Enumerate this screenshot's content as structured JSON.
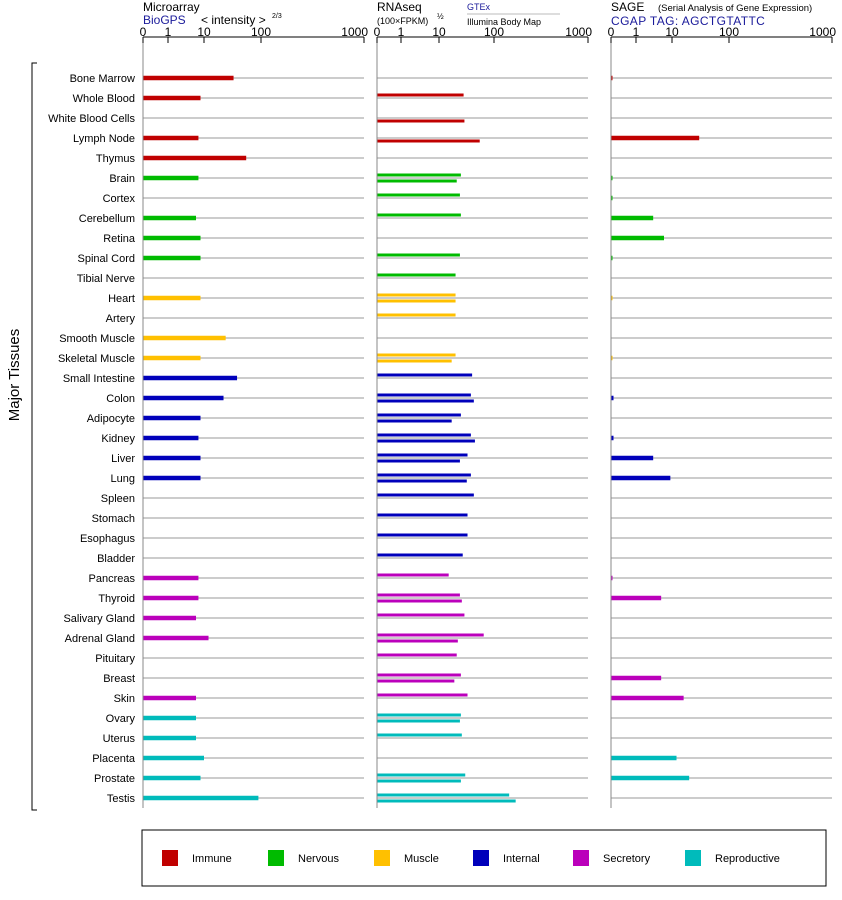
{
  "colors": {
    "Immune": "#c00000",
    "Nervous": "#00bb00",
    "Muscle": "#ffc000",
    "Internal": "#0000bb",
    "Secretory": "#bb00bb",
    "Reproductive": "#00bbbb"
  },
  "row_axis_label": "Major Tissues",
  "tissues": [
    {
      "name": "Bone Marrow",
      "group": "Immune"
    },
    {
      "name": "Whole Blood",
      "group": "Immune"
    },
    {
      "name": "White Blood Cells",
      "group": "Immune"
    },
    {
      "name": "Lymph Node",
      "group": "Immune"
    },
    {
      "name": "Thymus",
      "group": "Immune"
    },
    {
      "name": "Brain",
      "group": "Nervous"
    },
    {
      "name": "Cortex",
      "group": "Nervous"
    },
    {
      "name": "Cerebellum",
      "group": "Nervous"
    },
    {
      "name": "Retina",
      "group": "Nervous"
    },
    {
      "name": "Spinal Cord",
      "group": "Nervous"
    },
    {
      "name": "Tibial Nerve",
      "group": "Nervous"
    },
    {
      "name": "Heart",
      "group": "Muscle"
    },
    {
      "name": "Artery",
      "group": "Muscle"
    },
    {
      "name": "Smooth Muscle",
      "group": "Muscle"
    },
    {
      "name": "Skeletal Muscle",
      "group": "Muscle"
    },
    {
      "name": "Small Intestine",
      "group": "Internal"
    },
    {
      "name": "Colon",
      "group": "Internal"
    },
    {
      "name": "Adipocyte",
      "group": "Internal"
    },
    {
      "name": "Kidney",
      "group": "Internal"
    },
    {
      "name": "Liver",
      "group": "Internal"
    },
    {
      "name": "Lung",
      "group": "Internal"
    },
    {
      "name": "Spleen",
      "group": "Internal"
    },
    {
      "name": "Stomach",
      "group": "Internal"
    },
    {
      "name": "Esophagus",
      "group": "Internal"
    },
    {
      "name": "Bladder",
      "group": "Internal"
    },
    {
      "name": "Pancreas",
      "group": "Secretory"
    },
    {
      "name": "Thyroid",
      "group": "Secretory"
    },
    {
      "name": "Salivary Gland",
      "group": "Secretory"
    },
    {
      "name": "Adrenal Gland",
      "group": "Secretory"
    },
    {
      "name": "Pituitary",
      "group": "Secretory"
    },
    {
      "name": "Breast",
      "group": "Secretory"
    },
    {
      "name": "Skin",
      "group": "Secretory"
    },
    {
      "name": "Ovary",
      "group": "Reproductive"
    },
    {
      "name": "Uterus",
      "group": "Reproductive"
    },
    {
      "name": "Placenta",
      "group": "Reproductive"
    },
    {
      "name": "Prostate",
      "group": "Reproductive"
    },
    {
      "name": "Testis",
      "group": "Reproductive"
    }
  ],
  "chart_data": [
    {
      "type": "bar",
      "title": "Microarray",
      "subtitle_link": "BioGPS",
      "scale_label": "< intensity >",
      "scale_exponent": "2/3",
      "ticks": [
        0,
        1,
        10,
        100,
        1000
      ],
      "xlim": [
        0,
        1000
      ],
      "values": [
        33,
        8,
        null,
        7,
        55,
        7,
        null,
        6,
        8,
        8,
        null,
        8,
        null,
        24,
        8,
        38,
        22,
        8,
        7,
        8,
        8,
        null,
        null,
        null,
        null,
        7,
        7,
        6,
        12,
        null,
        null,
        6,
        6,
        6,
        10,
        8,
        90
      ]
    },
    {
      "type": "bar",
      "title": "RNAseq",
      "scale_label": "(100×FPKM)",
      "scale_exponent": "½",
      "legend_top": "GTEx",
      "legend_bottom": "Illumina Body Map",
      "ticks": [
        0,
        1,
        10,
        100,
        1000
      ],
      "xlim": [
        0,
        1000
      ],
      "values_gtex": [
        null,
        28,
        null,
        null,
        null,
        25,
        24,
        25,
        null,
        24,
        20,
        20,
        20,
        null,
        20,
        40,
        38,
        25,
        38,
        33,
        38,
        43,
        33,
        33,
        27,
        15,
        24,
        29,
        65,
        21,
        25,
        33,
        25,
        26,
        null,
        30,
        145
      ],
      "values_bodymap": [
        null,
        null,
        29,
        55,
        null,
        21,
        null,
        null,
        null,
        null,
        null,
        20,
        null,
        null,
        17,
        null,
        43,
        17,
        45,
        24,
        32,
        null,
        null,
        null,
        null,
        null,
        26,
        null,
        22,
        null,
        19,
        null,
        24,
        null,
        null,
        25,
        170
      ]
    },
    {
      "type": "bar",
      "title": "SAGE",
      "title_note": "(Serial Analysis of Gene Expression)",
      "tag_label": "CGAP TAG: AGCTGTATTC",
      "ticks": [
        0,
        1,
        10,
        100,
        1000
      ],
      "xlim": [
        0,
        1000
      ],
      "values": [
        0.05,
        null,
        null,
        30,
        null,
        0.05,
        0.03,
        3,
        6,
        0.05,
        null,
        0.02,
        null,
        null,
        0.02,
        null,
        0.1,
        null,
        0.1,
        3,
        9,
        null,
        null,
        null,
        null,
        0.05,
        5,
        null,
        null,
        null,
        5,
        16,
        null,
        null,
        12,
        20,
        null
      ]
    }
  ],
  "legend": [
    {
      "label": "Immune",
      "color": "#c00000"
    },
    {
      "label": "Nervous",
      "color": "#00bb00"
    },
    {
      "label": "Muscle",
      "color": "#ffc000"
    },
    {
      "label": "Internal",
      "color": "#0000bb"
    },
    {
      "label": "Secretory",
      "color": "#bb00bb"
    },
    {
      "label": "Reproductive",
      "color": "#00bbbb"
    }
  ]
}
